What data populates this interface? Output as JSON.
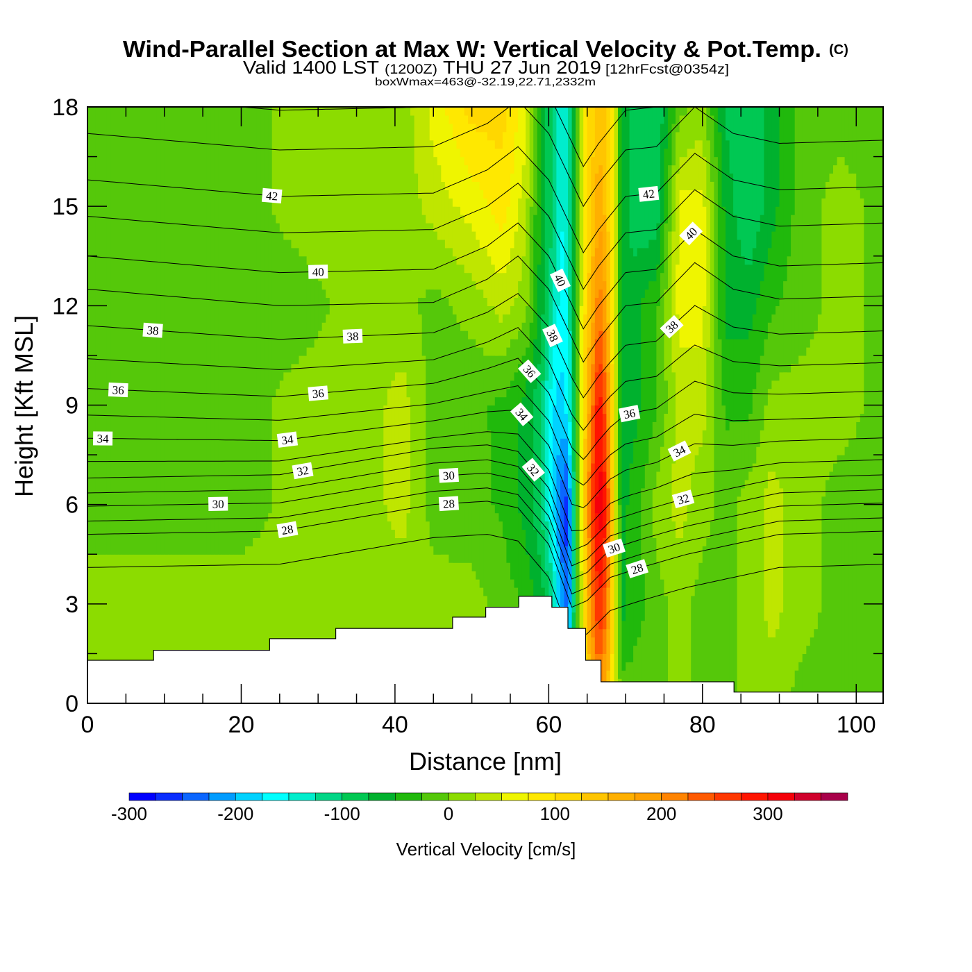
{
  "header": {
    "title": "Wind-Parallel Section at Max W: Vertical Velocity & Pot.Temp.",
    "copyright": "(C)",
    "valid_prefix": "Valid 1400 LST",
    "valid_utc": "(1200Z)",
    "valid_date": "THU 27 Jun 2019",
    "forecast": "[12hrFcst@0354z]",
    "box_wmax": "boxWmax=463@-32.19,22.71,2332m"
  },
  "chart_data": {
    "type": "heatmap",
    "title": "Wind-Parallel Section at Max W: Vertical Velocity & Pot.Temp.",
    "xlabel": "Distance [nm]",
    "ylabel": "Height [Kft MSL]",
    "xlim": [
      0,
      103.5
    ],
    "ylim": [
      0,
      18
    ],
    "xticks": [
      "0",
      "20",
      "40",
      "60",
      "80",
      "100"
    ],
    "xtick_values": [
      0,
      20,
      40,
      60,
      80,
      100
    ],
    "yticks": [
      "0",
      "3",
      "6",
      "9",
      "12",
      "15",
      "18"
    ],
    "ytick_values": [
      0,
      3,
      6,
      9,
      12,
      15,
      18
    ],
    "vertical_velocity": {
      "units": "cm/s",
      "y": [
        0,
        3,
        6,
        9,
        12,
        15,
        18
      ],
      "x": [
        0,
        6,
        12,
        20,
        28,
        35,
        41,
        45,
        50,
        54,
        57,
        59,
        60.5,
        61.5,
        62.5,
        63.5,
        64.5,
        65.5,
        66.5,
        67.5,
        68.5,
        69.5,
        71,
        74,
        77,
        80,
        83,
        86,
        89,
        93,
        98,
        104
      ],
      "w": [
        [
          10,
          10,
          -10,
          -10,
          -10,
          -10,
          -10
        ],
        [
          10,
          10,
          -10,
          -10,
          -10,
          -10,
          -10
        ],
        [
          10,
          10,
          -10,
          -10,
          -10,
          -10,
          -10
        ],
        [
          10,
          10,
          -10,
          -10,
          -10,
          -10,
          -10
        ],
        [
          10,
          10,
          10,
          10,
          -10,
          10,
          10
        ],
        [
          10,
          10,
          10,
          10,
          10,
          10,
          10
        ],
        [
          10,
          10,
          35,
          35,
          10,
          10,
          10
        ],
        [
          10,
          10,
          -10,
          -10,
          -10,
          35,
          60
        ],
        [
          10,
          10,
          -15,
          -20,
          10,
          60,
          110
        ],
        [
          10,
          -10,
          -30,
          -30,
          35,
          90,
          110
        ],
        [
          -10,
          -30,
          -60,
          -60,
          10,
          35,
          60
        ],
        [
          -30,
          -60,
          -100,
          -100,
          -60,
          -60,
          -60
        ],
        [
          -60,
          -110,
          -170,
          -170,
          -120,
          -100,
          -100
        ],
        [
          -100,
          -200,
          -230,
          -190,
          -160,
          -150,
          -150
        ],
        [
          -100,
          -250,
          -270,
          -160,
          -150,
          -140,
          -130
        ],
        [
          -30,
          -60,
          -60,
          -50,
          -40,
          -40,
          -40
        ],
        [
          60,
          80,
          100,
          90,
          80,
          70,
          70
        ],
        [
          150,
          200,
          250,
          200,
          150,
          120,
          110
        ],
        [
          200,
          280,
          320,
          300,
          220,
          170,
          140
        ],
        [
          150,
          230,
          280,
          230,
          170,
          140,
          120
        ],
        [
          60,
          80,
          80,
          70,
          60,
          60,
          60
        ],
        [
          -10,
          -60,
          -60,
          -60,
          -60,
          -60,
          -60
        ],
        [
          -10,
          -40,
          -40,
          -60,
          -60,
          -90,
          -90
        ],
        [
          -10,
          -10,
          10,
          -30,
          -30,
          -100,
          -100
        ],
        [
          10,
          10,
          35,
          35,
          60,
          60,
          -10
        ],
        [
          -10,
          -10,
          10,
          35,
          60,
          60,
          10
        ],
        [
          -10,
          -10,
          -10,
          -30,
          -60,
          -60,
          -80
        ],
        [
          10,
          10,
          10,
          -30,
          -60,
          -100,
          -100
        ],
        [
          10,
          35,
          35,
          10,
          -30,
          -60,
          -60
        ],
        [
          -10,
          10,
          10,
          10,
          -10,
          -10,
          -10
        ],
        [
          -10,
          -10,
          -10,
          10,
          10,
          10,
          -10
        ],
        [
          -10,
          -10,
          -10,
          -10,
          -10,
          -10,
          -10
        ]
      ]
    },
    "potential_temperature": {
      "units": "C",
      "levels": [
        27,
        28,
        29,
        30,
        31,
        32,
        33,
        34,
        35,
        36,
        37,
        38,
        39,
        40,
        41,
        42,
        43,
        44
      ],
      "base_height_kft": [
        4.1,
        5.1,
        5.5,
        5.95,
        6.35,
        6.8,
        7.3,
        8.0,
        8.7,
        9.5,
        10.4,
        11.4,
        12.5,
        13.5,
        14.7,
        15.8,
        17.2,
        18.4
      ],
      "labels": [
        {
          "text": "42",
          "level": 42,
          "x": 24
        },
        {
          "text": "40",
          "level": 40,
          "x": 30
        },
        {
          "text": "38",
          "level": 38,
          "x": 8.5
        },
        {
          "text": "38",
          "level": 38,
          "x": 34.5
        },
        {
          "text": "36",
          "level": 36,
          "x": 4
        },
        {
          "text": "36",
          "level": 36,
          "x": 30
        },
        {
          "text": "34",
          "level": 34,
          "x": 2
        },
        {
          "text": "34",
          "level": 34,
          "x": 26
        },
        {
          "text": "32",
          "level": 32,
          "x": 28
        },
        {
          "text": "30",
          "level": 30,
          "x": 17
        },
        {
          "text": "30",
          "level": 30,
          "x": 47
        },
        {
          "text": "28",
          "level": 28,
          "x": 26
        },
        {
          "text": "28",
          "level": 28,
          "x": 47
        },
        {
          "text": "42",
          "level": 42,
          "x": 73
        },
        {
          "text": "40",
          "level": 40,
          "x": 61.5
        },
        {
          "text": "40",
          "level": 40,
          "x": 78.5
        },
        {
          "text": "38",
          "level": 38,
          "x": 60.5
        },
        {
          "text": "38",
          "level": 38,
          "x": 76
        },
        {
          "text": "36",
          "level": 36,
          "x": 57.5
        },
        {
          "text": "36",
          "level": 36,
          "x": 70.5
        },
        {
          "text": "34",
          "level": 34,
          "x": 56.5
        },
        {
          "text": "34",
          "level": 34,
          "x": 77
        },
        {
          "text": "32",
          "level": 32,
          "x": 58
        },
        {
          "text": "32",
          "level": 32,
          "x": 77.5
        },
        {
          "text": "30",
          "level": 30,
          "x": 68.5
        },
        {
          "text": "28",
          "level": 28,
          "x": 71.5
        }
      ]
    },
    "terrain": {
      "x": [
        0,
        8.6,
        23.7,
        32.3,
        47.5,
        51.8,
        56.1,
        60.4,
        62.5,
        64.8,
        66.8,
        84.1
      ],
      "x_end": 103.5,
      "height_kft": [
        1.3,
        1.6,
        1.95,
        2.26,
        2.6,
        2.9,
        3.23,
        2.9,
        2.26,
        1.3,
        0.65,
        0.34
      ]
    },
    "colorbar": {
      "title": "Vertical Velocity [cm/s]",
      "min": -300,
      "step": 25,
      "tick_labels": [
        "-300",
        "-200",
        "-100",
        "0",
        "100",
        "200",
        "300"
      ],
      "tick_values": [
        -300,
        -200,
        -100,
        0,
        100,
        200,
        300
      ],
      "colors": [
        "#0000ff",
        "#0a2dff",
        "#0b66ff",
        "#009cff",
        "#00d2ff",
        "#00ffff",
        "#00edcc",
        "#00d686",
        "#00c853",
        "#00b12e",
        "#20b90c",
        "#55c80a",
        "#8cdc00",
        "#bfe600",
        "#eff500",
        "#ffe800",
        "#ffd700",
        "#ffc500",
        "#ffb000",
        "#ffa000",
        "#ff8400",
        "#ff5a00",
        "#ff3800",
        "#ff1500",
        "#f5000a",
        "#d0002c",
        "#a8004a"
      ]
    }
  }
}
